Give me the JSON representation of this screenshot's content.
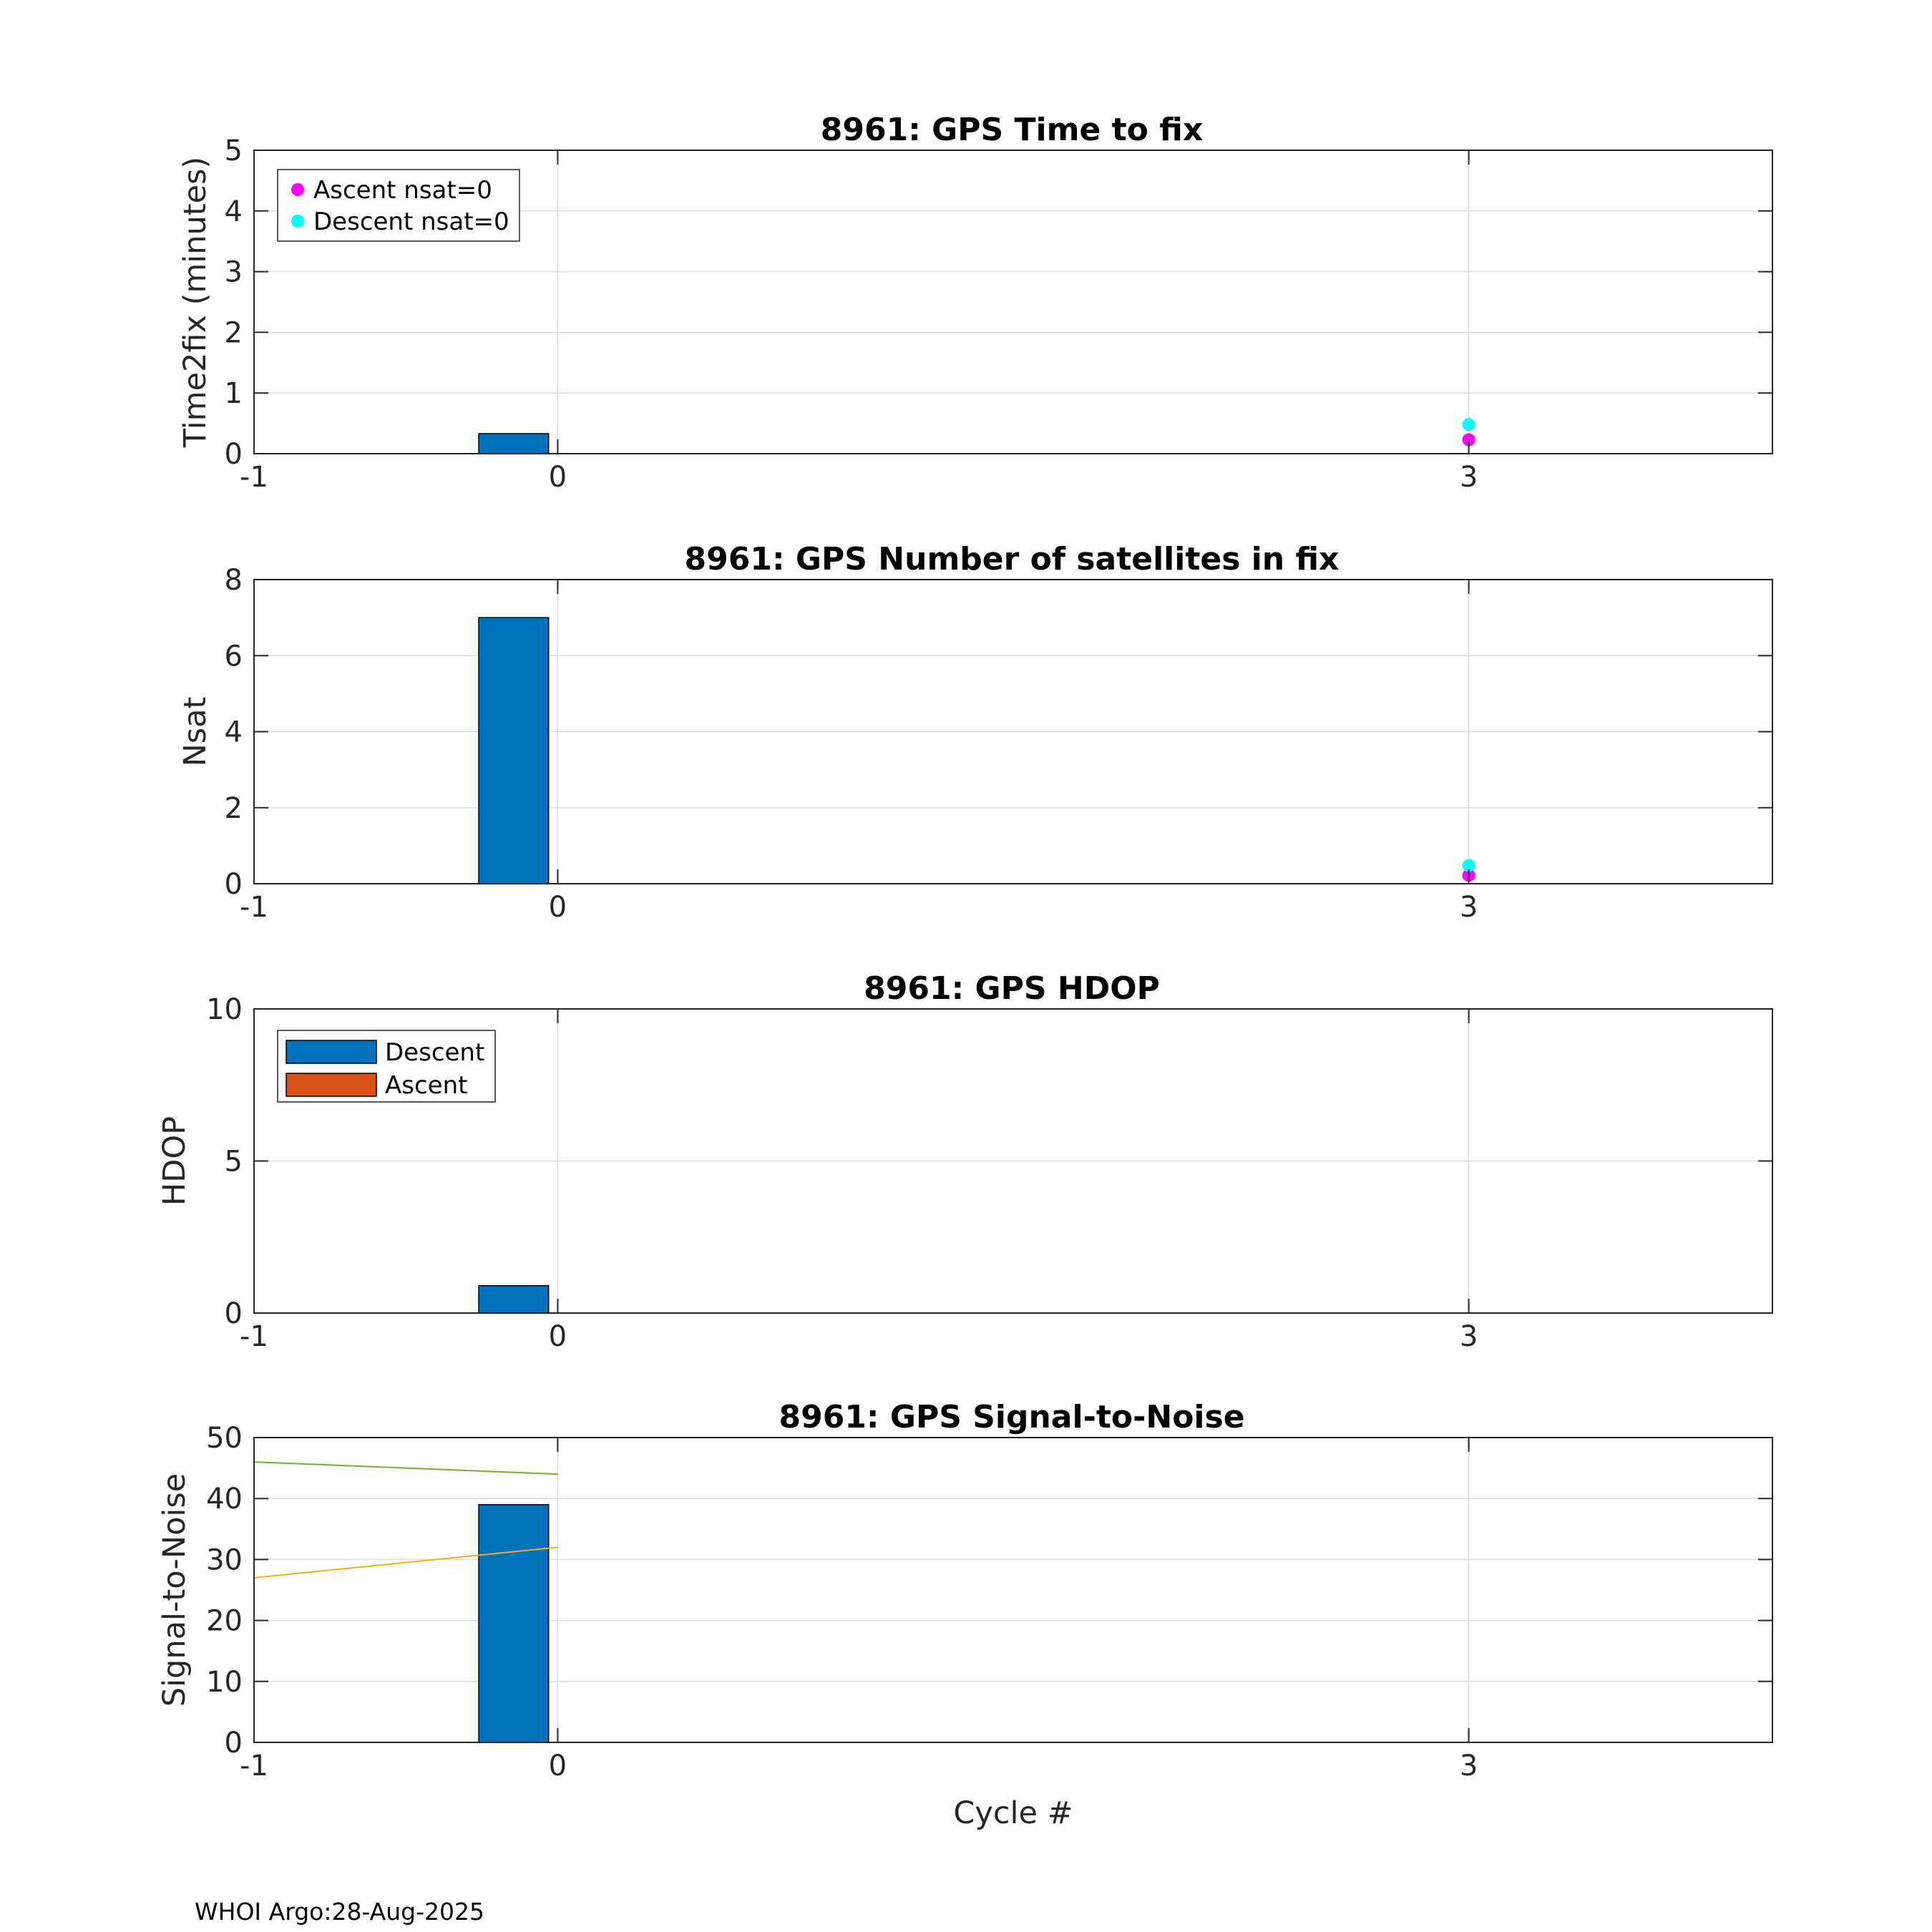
{
  "footer": "WHOI Argo:28-Aug-2025",
  "colors": {
    "descent": "#0072BD",
    "ascent": "#D95319",
    "ascent_marker": "#FF00FF",
    "descent_marker": "#00FFFF",
    "snr_green": "#77AC30",
    "snr_yellow": "#EDB120",
    "grid": "#dcdcdc"
  },
  "chart_data": [
    {
      "type": "bar",
      "title": "8961: GPS Time to fix",
      "xlabel": "",
      "ylabel": "Time2fix (minutes)",
      "xlim": [
        -1,
        4
      ],
      "ylim": [
        0,
        5
      ],
      "xticks": [
        -1,
        0,
        3
      ],
      "yticks": [
        0,
        1,
        2,
        3,
        4,
        5
      ],
      "grid": true,
      "bars": [
        {
          "x_start": -0.26,
          "x_end": -0.03,
          "value": 0.33,
          "series": "Descent"
        }
      ],
      "scatter": [
        {
          "name": "Ascent nsat=0",
          "x": 3,
          "y": 0.23,
          "color": "#FF00FF"
        },
        {
          "name": "Descent nsat=0",
          "x": 3,
          "y": 0.48,
          "color": "#00FFFF"
        }
      ],
      "legend": {
        "placement": "top-left",
        "type": "marker",
        "entries": [
          {
            "label": "Ascent nsat=0",
            "color": "#FF00FF"
          },
          {
            "label": "Descent nsat=0",
            "color": "#00FFFF"
          }
        ]
      }
    },
    {
      "type": "bar",
      "title": "8961: GPS Number of satellites in fix",
      "xlabel": "",
      "ylabel": "Nsat",
      "xlim": [
        -1,
        4
      ],
      "ylim": [
        0,
        8
      ],
      "xticks": [
        -1,
        0,
        3
      ],
      "yticks": [
        0,
        2,
        4,
        6,
        8
      ],
      "grid": true,
      "bars": [
        {
          "x_start": -0.26,
          "x_end": -0.03,
          "value": 7,
          "series": "Descent"
        }
      ],
      "scatter": [
        {
          "name": "Ascent",
          "x": 3,
          "y": 0.22,
          "color": "#FF00FF"
        },
        {
          "name": "Descent",
          "x": 3,
          "y": 0.48,
          "color": "#00FFFF"
        }
      ]
    },
    {
      "type": "bar",
      "title": "8961: GPS HDOP",
      "xlabel": "",
      "ylabel": "HDOP",
      "xlim": [
        -1,
        4
      ],
      "ylim": [
        0,
        10
      ],
      "xticks": [
        -1,
        0,
        3
      ],
      "yticks": [
        0,
        5,
        10
      ],
      "grid": true,
      "bars": [
        {
          "x_start": -0.26,
          "x_end": -0.03,
          "value": 0.9,
          "series": "Descent"
        }
      ],
      "legend": {
        "placement": "top-left",
        "type": "patch",
        "entries": [
          {
            "label": "Descent",
            "color": "#0072BD"
          },
          {
            "label": "Ascent",
            "color": "#D95319"
          }
        ]
      }
    },
    {
      "type": "bar",
      "title": "8961: GPS Signal-to-Noise",
      "xlabel": "Cycle #",
      "ylabel": "Signal-to-Noise",
      "xlim": [
        -1,
        4
      ],
      "ylim": [
        0,
        50
      ],
      "xticks": [
        -1,
        0,
        3
      ],
      "yticks": [
        0,
        10,
        20,
        30,
        40,
        50
      ],
      "grid": true,
      "bars": [
        {
          "x_start": -0.26,
          "x_end": -0.03,
          "value": 39,
          "series": "Descent"
        }
      ],
      "lines": [
        {
          "name": "snr-green",
          "x": [
            -1,
            0
          ],
          "y": [
            46,
            44
          ],
          "color": "#77AC30"
        },
        {
          "name": "snr-yellow",
          "x": [
            -1,
            0
          ],
          "y": [
            27,
            32
          ],
          "color": "#EDB120"
        }
      ]
    }
  ]
}
